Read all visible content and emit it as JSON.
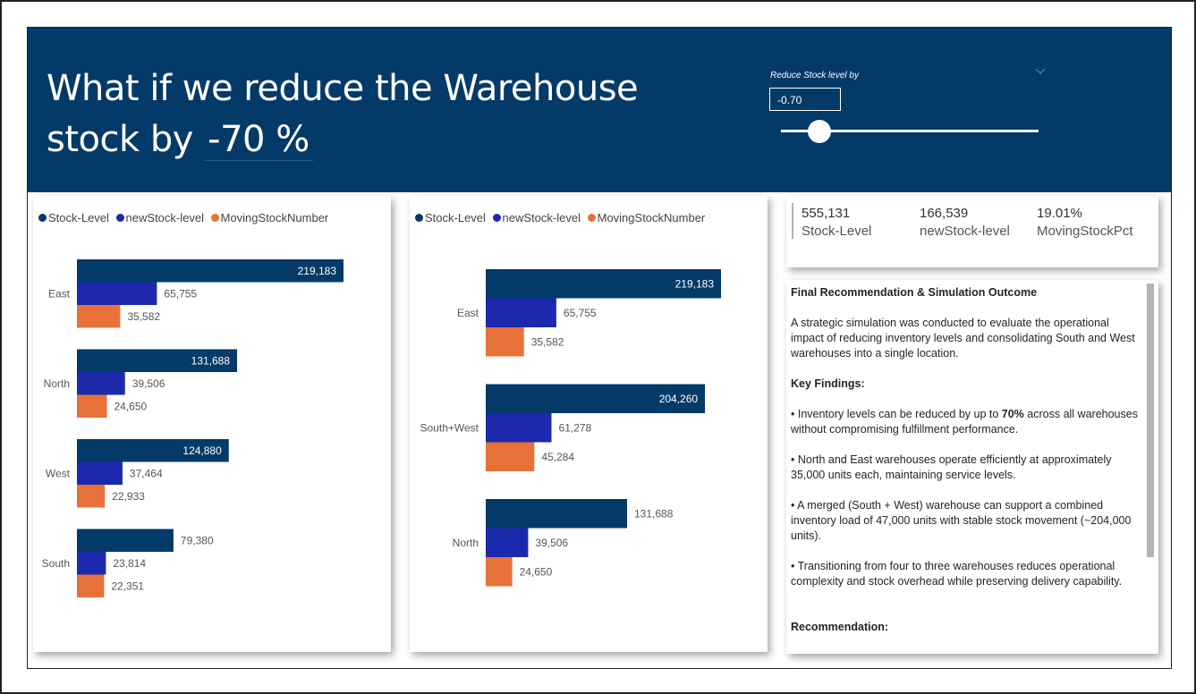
{
  "header": {
    "title_line1": "What if we reduce the Warehouse",
    "title_prefix": "stock by",
    "title_value": "-70 %",
    "slicer_label": "Reduce Stock level by",
    "slicer_value": "-0.70",
    "slider_fraction": 0.15
  },
  "legend": {
    "items": [
      {
        "label": "Stock-Level",
        "color": "#043a67"
      },
      {
        "label": "newStock-level",
        "color": "#1c29ad"
      },
      {
        "label": "MovingStockNumber",
        "color": "#e8713a"
      }
    ]
  },
  "chart_data": [
    {
      "type": "bar",
      "orientation": "horizontal",
      "categories": [
        "East",
        "North",
        "West",
        "South"
      ],
      "series": [
        {
          "name": "Stock-Level",
          "color": "#043a67",
          "values": [
            219183,
            131688,
            124880,
            79380
          ],
          "labels": [
            "219,183",
            "131,688",
            "124,880",
            "79,380"
          ]
        },
        {
          "name": "newStock-level",
          "color": "#1c29ad",
          "values": [
            65755,
            39506,
            37464,
            23814
          ],
          "labels": [
            "65,755",
            "39,506",
            "37,464",
            "23,814"
          ]
        },
        {
          "name": "MovingStockNumber",
          "color": "#e8713a",
          "values": [
            35582,
            24650,
            22933,
            22351
          ],
          "labels": [
            "35,582",
            "24,650",
            "22,933",
            "22,351"
          ]
        }
      ],
      "xlim": [
        0,
        219183
      ]
    },
    {
      "type": "bar",
      "orientation": "horizontal",
      "categories": [
        "East",
        "South+West",
        "North"
      ],
      "series": [
        {
          "name": "Stock-Level",
          "color": "#043a67",
          "values": [
            219183,
            204260,
            131688
          ],
          "labels": [
            "219,183",
            "204,260",
            "131,688"
          ]
        },
        {
          "name": "newStock-level",
          "color": "#1c29ad",
          "values": [
            65755,
            61278,
            39506
          ],
          "labels": [
            "65,755",
            "61,278",
            "39,506"
          ]
        },
        {
          "name": "MovingStockNumber",
          "color": "#e8713a",
          "values": [
            35582,
            45284,
            24650
          ],
          "labels": [
            "35,582",
            "45,284",
            "24,650"
          ]
        }
      ],
      "xlim": [
        0,
        219183
      ]
    }
  ],
  "kpis": [
    {
      "value": "555,131",
      "label": "Stock-Level"
    },
    {
      "value": "166,539",
      "label": "newStock-level"
    },
    {
      "value": "19.01%",
      "label": "MovingStockPct"
    }
  ],
  "recommendation": {
    "heading": "Final Recommendation & Simulation Outcome",
    "intro": "A strategic simulation was conducted to evaluate the operational impact of reducing inventory levels and consolidating South and West warehouses into a single location.",
    "findings_heading": "Key Findings:",
    "finding1_pre": "• Inventory levels can be reduced by up to ",
    "finding1_bold": "70%",
    "finding1_post": " across all warehouses without compromising fulfillment performance.",
    "finding2": "• North and East warehouses operate efficiently at approximately 35,000 units each, maintaining service levels.",
    "finding3": "• A merged (South + West) warehouse can support a combined inventory load of 47,000 units with stable stock movement (~204,000 units).",
    "finding4": "• Transitioning from four to three warehouses reduces operational complexity and stock overhead while preserving delivery capability.",
    "recommendation_heading": "Recommendation:"
  }
}
